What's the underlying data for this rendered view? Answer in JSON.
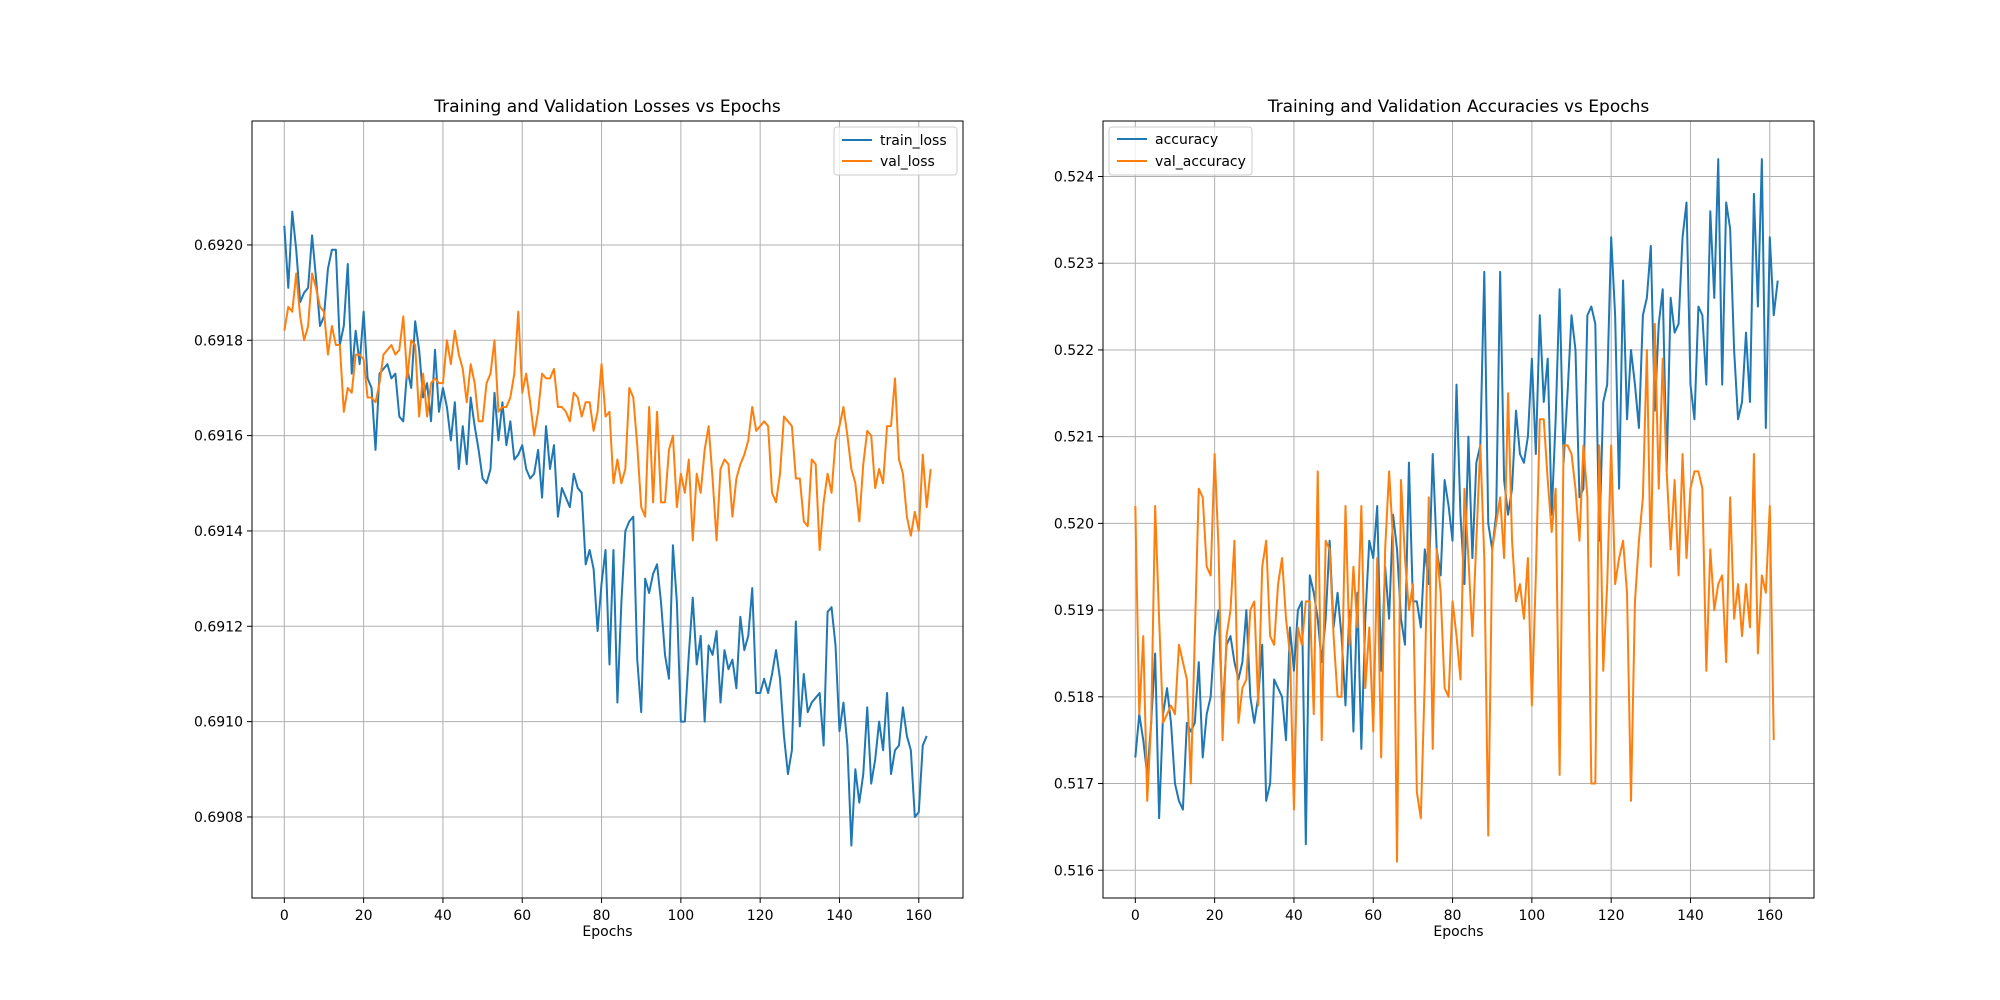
{
  "chart_data": [
    {
      "type": "line",
      "title": "Training and Validation Losses vs Epochs",
      "xlabel": "Epochs",
      "ylabel": "",
      "xlim": [
        -8.15,
        171.15
      ],
      "ylim": [
        0.69063,
        0.69226
      ],
      "xticks": [
        0,
        20,
        40,
        60,
        80,
        100,
        120,
        140,
        160
      ],
      "yticks": [
        0.6908,
        0.691,
        0.6912,
        0.6914,
        0.6916,
        0.6918,
        0.692
      ],
      "ytick_decimals": 4,
      "grid": true,
      "legend": "top-right",
      "series": [
        {
          "name": "train_loss",
          "color": "#1f77b4",
          "x_start": 0,
          "values": [
            0.69204,
            0.69191,
            0.69207,
            0.69199,
            0.69188,
            0.6919,
            0.69191,
            0.69202,
            0.69193,
            0.69183,
            0.69185,
            0.69195,
            0.69199,
            0.69199,
            0.69179,
            0.69183,
            0.69196,
            0.69173,
            0.69182,
            0.69175,
            0.69186,
            0.69172,
            0.6917,
            0.69157,
            0.69173,
            0.69174,
            0.69175,
            0.69172,
            0.69173,
            0.69164,
            0.69163,
            0.69174,
            0.6917,
            0.69184,
            0.69178,
            0.69168,
            0.69171,
            0.69163,
            0.69178,
            0.69165,
            0.6917,
            0.69166,
            0.69159,
            0.69167,
            0.69153,
            0.69162,
            0.69154,
            0.69168,
            0.69162,
            0.69157,
            0.69151,
            0.6915,
            0.69153,
            0.69169,
            0.69159,
            0.69167,
            0.69158,
            0.69163,
            0.69155,
            0.69156,
            0.69158,
            0.69153,
            0.69151,
            0.69152,
            0.69157,
            0.69147,
            0.69162,
            0.69153,
            0.69158,
            0.69143,
            0.69149,
            0.69147,
            0.69145,
            0.69152,
            0.69149,
            0.69148,
            0.69133,
            0.69136,
            0.69132,
            0.69119,
            0.69129,
            0.69136,
            0.69112,
            0.69136,
            0.69104,
            0.69125,
            0.6914,
            0.69142,
            0.69143,
            0.69113,
            0.69102,
            0.6913,
            0.69127,
            0.69131,
            0.69133,
            0.69125,
            0.69114,
            0.69109,
            0.69137,
            0.69125,
            0.691,
            0.691,
            0.69114,
            0.69126,
            0.69112,
            0.69118,
            0.691,
            0.69116,
            0.69114,
            0.69119,
            0.69104,
            0.69115,
            0.69111,
            0.69113,
            0.69107,
            0.69122,
            0.69115,
            0.69118,
            0.69128,
            0.69106,
            0.69106,
            0.69109,
            0.69106,
            0.6911,
            0.69115,
            0.69109,
            0.69097,
            0.69089,
            0.69094,
            0.69121,
            0.69099,
            0.6911,
            0.69102,
            0.69104,
            0.69105,
            0.69106,
            0.69095,
            0.69123,
            0.69124,
            0.69116,
            0.69098,
            0.69104,
            0.69095,
            0.69074,
            0.6909,
            0.69083,
            0.69089,
            0.69103,
            0.69087,
            0.69092,
            0.691,
            0.69094,
            0.69106,
            0.69089,
            0.69094,
            0.69095,
            0.69103,
            0.69097,
            0.69094,
            0.6908,
            0.69081,
            0.69095,
            0.69097
          ]
        },
        {
          "name": "val_loss",
          "color": "#ff7f0e",
          "x_start": 0,
          "values": [
            0.69182,
            0.69187,
            0.69186,
            0.69194,
            0.69185,
            0.6918,
            0.69183,
            0.69194,
            0.69191,
            0.69187,
            0.69186,
            0.69177,
            0.69183,
            0.69179,
            0.69179,
            0.69165,
            0.6917,
            0.69169,
            0.69177,
            0.69177,
            0.69176,
            0.69168,
            0.69168,
            0.69167,
            0.69171,
            0.69177,
            0.69178,
            0.69179,
            0.69177,
            0.69178,
            0.69185,
            0.69172,
            0.6918,
            0.69179,
            0.69164,
            0.69173,
            0.69164,
            0.69171,
            0.69172,
            0.69171,
            0.69171,
            0.6918,
            0.69175,
            0.69182,
            0.69177,
            0.69174,
            0.69167,
            0.69175,
            0.69171,
            0.69163,
            0.69163,
            0.69171,
            0.69173,
            0.6918,
            0.69165,
            0.69166,
            0.69166,
            0.69168,
            0.69173,
            0.69186,
            0.69169,
            0.69173,
            0.69167,
            0.6916,
            0.69165,
            0.69173,
            0.69172,
            0.69172,
            0.69174,
            0.69166,
            0.69166,
            0.69165,
            0.69163,
            0.69169,
            0.69168,
            0.69164,
            0.69167,
            0.69167,
            0.69161,
            0.69165,
            0.69175,
            0.69164,
            0.69165,
            0.6915,
            0.69155,
            0.6915,
            0.69153,
            0.6917,
            0.69168,
            0.69158,
            0.69145,
            0.69143,
            0.69166,
            0.69146,
            0.69165,
            0.69146,
            0.69146,
            0.69157,
            0.6916,
            0.69145,
            0.69152,
            0.69148,
            0.69155,
            0.69138,
            0.69152,
            0.69148,
            0.69157,
            0.69162,
            0.69151,
            0.69138,
            0.69153,
            0.69155,
            0.69154,
            0.69143,
            0.69151,
            0.69154,
            0.69156,
            0.69159,
            0.69166,
            0.69161,
            0.69162,
            0.69163,
            0.69162,
            0.69148,
            0.69146,
            0.69152,
            0.69164,
            0.69163,
            0.69162,
            0.69151,
            0.69151,
            0.69142,
            0.69141,
            0.69155,
            0.69154,
            0.69136,
            0.69146,
            0.69152,
            0.69148,
            0.69159,
            0.69162,
            0.69166,
            0.6916,
            0.69153,
            0.6915,
            0.69142,
            0.69154,
            0.69161,
            0.6916,
            0.69149,
            0.69153,
            0.6915,
            0.69162,
            0.69162,
            0.69172,
            0.69155,
            0.69152,
            0.69143,
            0.69139,
            0.69144,
            0.6914,
            0.69156,
            0.69145,
            0.69153
          ]
        }
      ]
    },
    {
      "type": "line",
      "title": "Training and Validation Accuracies vs Epochs",
      "xlabel": "Epochs",
      "ylabel": "",
      "xlim": [
        -8.15,
        171.15
      ],
      "ylim": [
        0.51568,
        0.52464
      ],
      "xticks": [
        0,
        20,
        40,
        60,
        80,
        100,
        120,
        140,
        160
      ],
      "yticks": [
        0.516,
        0.517,
        0.518,
        0.519,
        0.52,
        0.521,
        0.522,
        0.523,
        0.524
      ],
      "ytick_decimals": 3,
      "grid": true,
      "legend": "top-left",
      "series": [
        {
          "name": "accuracy",
          "color": "#1f77b4",
          "x_start": 0,
          "values": [
            0.5173,
            0.5178,
            0.5175,
            0.5171,
            0.5177,
            0.5185,
            0.5166,
            0.5178,
            0.5181,
            0.5177,
            0.517,
            0.5168,
            0.5167,
            0.5177,
            0.5176,
            0.5177,
            0.5184,
            0.5173,
            0.5178,
            0.518,
            0.5187,
            0.519,
            0.5178,
            0.5186,
            0.5187,
            0.5184,
            0.5182,
            0.5184,
            0.519,
            0.518,
            0.5177,
            0.518,
            0.5186,
            0.5168,
            0.517,
            0.5182,
            0.5181,
            0.518,
            0.5175,
            0.5188,
            0.5183,
            0.519,
            0.5191,
            0.5163,
            0.5194,
            0.5192,
            0.5189,
            0.5184,
            0.5189,
            0.5198,
            0.5188,
            0.5192,
            0.5187,
            0.5179,
            0.519,
            0.5176,
            0.5192,
            0.5174,
            0.5189,
            0.5198,
            0.5196,
            0.5202,
            0.5183,
            0.5195,
            0.5189,
            0.5201,
            0.5197,
            0.5189,
            0.5186,
            0.5207,
            0.5191,
            0.5191,
            0.5188,
            0.5197,
            0.5193,
            0.5208,
            0.5197,
            0.5194,
            0.5205,
            0.5202,
            0.5198,
            0.5216,
            0.5201,
            0.5193,
            0.521,
            0.5196,
            0.5207,
            0.5209,
            0.5229,
            0.52,
            0.5197,
            0.5201,
            0.5229,
            0.5205,
            0.5201,
            0.5204,
            0.5213,
            0.5208,
            0.5207,
            0.521,
            0.5219,
            0.5208,
            0.5224,
            0.5214,
            0.5219,
            0.5201,
            0.5212,
            0.5227,
            0.5207,
            0.5215,
            0.5224,
            0.522,
            0.5203,
            0.5204,
            0.5224,
            0.5225,
            0.5223,
            0.5198,
            0.5214,
            0.5216,
            0.5233,
            0.5224,
            0.5204,
            0.5228,
            0.5212,
            0.522,
            0.5216,
            0.5211,
            0.5224,
            0.5226,
            0.5232,
            0.5213,
            0.5223,
            0.5227,
            0.5206,
            0.5226,
            0.5222,
            0.5223,
            0.5233,
            0.5237,
            0.5216,
            0.5212,
            0.5225,
            0.5224,
            0.5216,
            0.5236,
            0.5226,
            0.5242,
            0.5216,
            0.5237,
            0.5234,
            0.522,
            0.5212,
            0.5214,
            0.5222,
            0.5214,
            0.5238,
            0.5225,
            0.5242,
            0.5211,
            0.5233,
            0.5224,
            0.5228
          ]
        },
        {
          "name": "val_accuracy",
          "color": "#ff7f0e",
          "x_start": 0,
          "values": [
            0.5202,
            0.5178,
            0.5187,
            0.5168,
            0.5177,
            0.5202,
            0.5189,
            0.5177,
            0.5178,
            0.5179,
            0.5178,
            0.5186,
            0.5184,
            0.5182,
            0.517,
            0.5187,
            0.5204,
            0.5203,
            0.5195,
            0.5194,
            0.5208,
            0.5197,
            0.5175,
            0.5187,
            0.519,
            0.5198,
            0.5177,
            0.5181,
            0.5182,
            0.519,
            0.5191,
            0.5179,
            0.5195,
            0.5198,
            0.5187,
            0.5186,
            0.5193,
            0.5196,
            0.5189,
            0.5185,
            0.5167,
            0.5188,
            0.5186,
            0.5191,
            0.5191,
            0.5178,
            0.5206,
            0.5175,
            0.5198,
            0.5197,
            0.5187,
            0.518,
            0.518,
            0.5202,
            0.5186,
            0.5195,
            0.5188,
            0.5202,
            0.5181,
            0.5188,
            0.5176,
            0.5196,
            0.5173,
            0.5197,
            0.5206,
            0.5198,
            0.5161,
            0.5205,
            0.5196,
            0.519,
            0.5193,
            0.5169,
            0.5166,
            0.5182,
            0.5203,
            0.5174,
            0.5197,
            0.5192,
            0.5181,
            0.518,
            0.5191,
            0.5187,
            0.5182,
            0.5204,
            0.5196,
            0.5187,
            0.5198,
            0.5209,
            0.5196,
            0.5164,
            0.5197,
            0.52,
            0.5203,
            0.5196,
            0.5215,
            0.5198,
            0.5191,
            0.5193,
            0.5189,
            0.5196,
            0.5179,
            0.5194,
            0.5212,
            0.5212,
            0.5205,
            0.5199,
            0.5204,
            0.5171,
            0.5209,
            0.5209,
            0.5208,
            0.5204,
            0.5198,
            0.5209,
            0.5203,
            0.517,
            0.517,
            0.5209,
            0.5183,
            0.5193,
            0.5209,
            0.5193,
            0.5196,
            0.5198,
            0.5192,
            0.5168,
            0.5191,
            0.5198,
            0.5203,
            0.522,
            0.5195,
            0.5223,
            0.5204,
            0.5219,
            0.5206,
            0.5197,
            0.5205,
            0.5194,
            0.5208,
            0.5196,
            0.5204,
            0.5206,
            0.5206,
            0.5204,
            0.5183,
            0.5197,
            0.519,
            0.5193,
            0.5194,
            0.5184,
            0.5203,
            0.5189,
            0.5193,
            0.5187,
            0.5193,
            0.5188,
            0.5208,
            0.5185,
            0.5194,
            0.5192,
            0.5202,
            0.5175
          ]
        }
      ]
    }
  ]
}
